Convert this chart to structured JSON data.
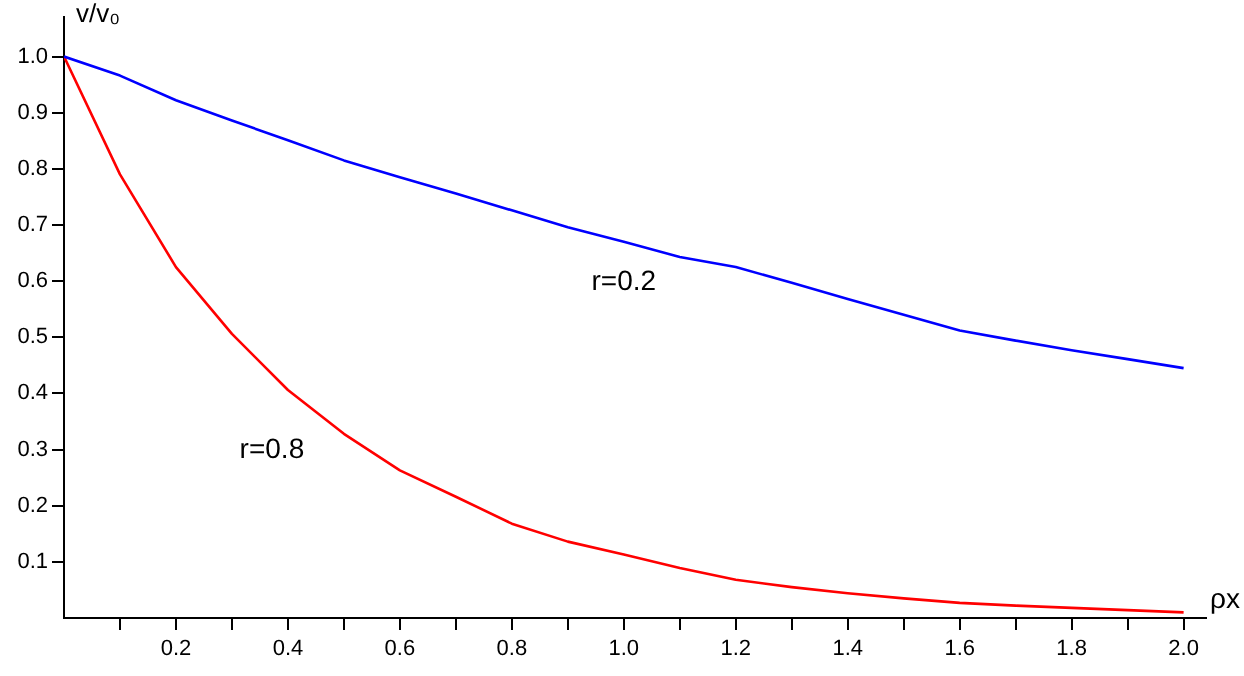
{
  "chart_data": {
    "type": "line",
    "xlabel": "ρx",
    "ylabel": "v/v₀",
    "x": [
      0,
      0.1,
      0.2,
      0.3,
      0.4,
      0.5,
      0.6,
      0.7,
      0.8,
      0.9,
      1.0,
      1.1,
      1.2,
      1.3,
      1.4,
      1.5,
      1.6,
      1.7,
      1.8,
      1.9,
      2.0
    ],
    "series": [
      {
        "name": "r=0.2",
        "color": "#0000ff",
        "values": [
          1,
          0.966,
          0.922,
          0.886,
          0.851,
          0.815,
          0.785,
          0.756,
          0.726,
          0.696,
          0.67,
          0.643,
          0.625,
          0.597,
          0.568,
          0.54,
          0.512,
          0.494,
          0.477,
          0.461,
          0.445
        ]
      },
      {
        "name": "r=0.8",
        "color": "#ff0000",
        "values": [
          1,
          0.79,
          0.625,
          0.506,
          0.406,
          0.328,
          0.263,
          0.216,
          0.168,
          0.136,
          0.113,
          0.089,
          0.068,
          0.055,
          0.044,
          0.035,
          0.027,
          0.022,
          0.018,
          0.014,
          0.01
        ]
      }
    ],
    "xlim": [
      0,
      2.04
    ],
    "ylim": [
      0,
      1.07
    ],
    "xticks": [
      {
        "value": 0.1,
        "label": null
      },
      0.2,
      {
        "value": 0.3,
        "label": null
      },
      0.4,
      {
        "value": 0.5,
        "label": null
      },
      0.6,
      {
        "value": 0.7,
        "label": null
      },
      0.8,
      {
        "value": 0.9,
        "label": null
      },
      {
        "value": 1,
        "label": "1.0"
      },
      {
        "value": 1.1,
        "label": null
      },
      1.2,
      {
        "value": 1.3,
        "label": null
      },
      1.4,
      {
        "value": 1.5,
        "label": null
      },
      1.6,
      {
        "value": 1.7,
        "label": null
      },
      1.8,
      {
        "value": 1.9,
        "label": null
      },
      {
        "value": 2,
        "label": "2.0"
      }
    ],
    "yticks": [
      0.1,
      0.2,
      0.3,
      0.4,
      0.5,
      0.6,
      0.7,
      0.8,
      0.9,
      {
        "value": 1,
        "label": "1.0"
      }
    ],
    "grid": false,
    "legend": false,
    "marker": "none",
    "line_style": "solid"
  }
}
